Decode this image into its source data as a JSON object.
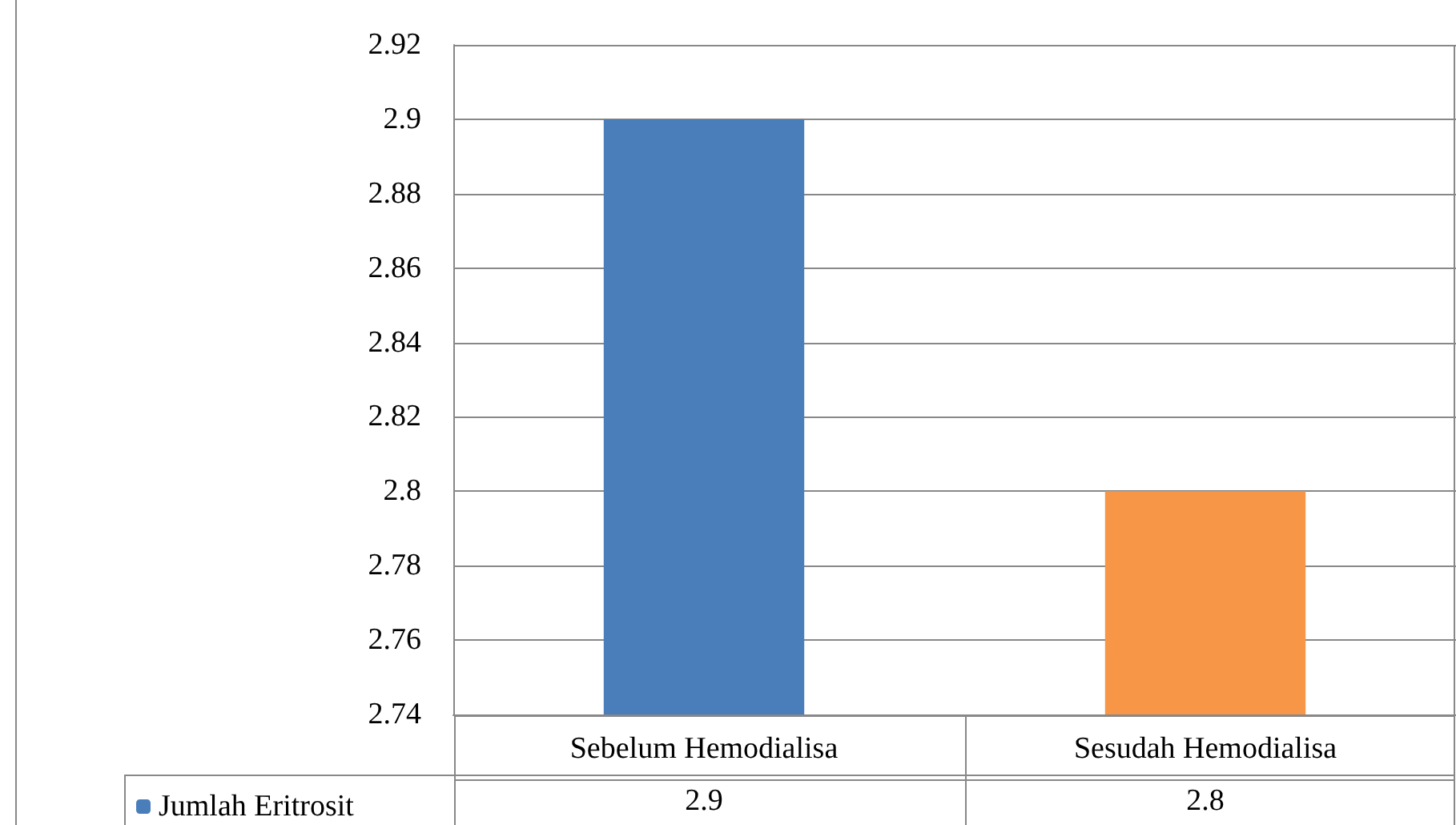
{
  "chart_data": {
    "type": "bar",
    "categories": [
      "Sebelum Hemodialisa",
      "Sesudah Hemodialisa"
    ],
    "series": [
      {
        "name": "Jumlah Eritrosit",
        "color": "#4a7ebb",
        "colors": [
          "#4a7ebb",
          "#f79646"
        ],
        "values": [
          2.9,
          2.8
        ]
      }
    ],
    "ylim": [
      2.74,
      2.92
    ],
    "yticks": [
      2.74,
      2.76,
      2.78,
      2.8,
      2.82,
      2.84,
      2.86,
      2.88,
      2.9,
      2.92
    ],
    "grid": "y",
    "legend": "bottom left",
    "data_labels": true
  }
}
